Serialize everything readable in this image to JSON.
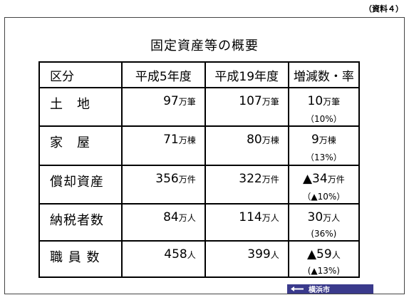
{
  "ref_label": "（資料４）",
  "title": "固定資産等の概要",
  "headers": [
    "区分",
    "平成5年度",
    "平成19年度",
    "増減数・率"
  ],
  "rows": [
    {
      "label": "土　地",
      "h5": "97",
      "h5_unit": "万筆",
      "h19": "107",
      "h19_unit": "万筆",
      "chg": "10",
      "chg_unit": "万筆",
      "pct": "（10%）"
    },
    {
      "label": "家　屋",
      "h5": "71",
      "h5_unit": "万棟",
      "h19": "80",
      "h19_unit": "万棟",
      "chg": "9",
      "chg_unit": "万棟",
      "pct": "（13%）"
    },
    {
      "label": "償却資産",
      "h5": "356",
      "h5_unit": "万件",
      "h19": "322",
      "h19_unit": "万件",
      "chg": "▲34",
      "chg_unit": "万件",
      "pct": "（▲10%）"
    },
    {
      "label": "納税者数",
      "h5": "84",
      "h5_unit": "万人",
      "h19": "114",
      "h19_unit": "万人",
      "chg": "30",
      "chg_unit": "万人",
      "pct": "(36%)"
    },
    {
      "label": "職 員 数",
      "h5": "458",
      "h5_unit": "人",
      "h19": "399",
      "h19_unit": "人",
      "chg": "▲59",
      "chg_unit": "人",
      "pct": "(▲13%)"
    }
  ],
  "logo_text": "横浜市"
}
